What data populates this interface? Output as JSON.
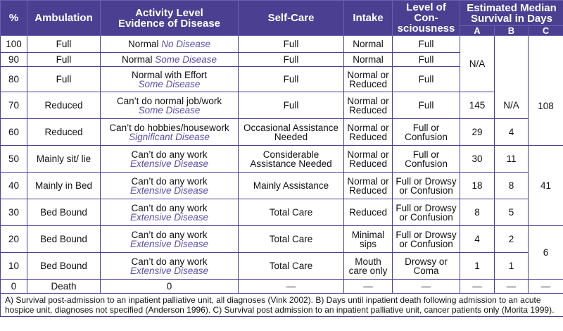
{
  "header": {
    "pct": "%",
    "ambulation": "Ambulation",
    "activity_line1": "Activity Level",
    "activity_line2": "Evidence of Disease",
    "selfcare": "Self-Care",
    "intake": "Intake",
    "consciousness_line1": "Level of Con-",
    "consciousness_line2": "sciousness",
    "estimate_line1": "Estimated Median",
    "estimate_line2": "Survival in Days",
    "col_a": "A",
    "col_b": "B",
    "col_c": "C"
  },
  "rows": [
    {
      "pct": "100",
      "amb": "Full",
      "act": "Normal",
      "dis": "No Disease",
      "care": "Full",
      "intake": "Normal",
      "loc": "Full"
    },
    {
      "pct": "90",
      "amb": "Full",
      "act": "Normal",
      "dis": "Some Disease",
      "care": "Full",
      "intake": "Normal",
      "loc": "Full"
    },
    {
      "pct": "80",
      "amb": "Full",
      "act": "Normal with Effort",
      "dis": "Some Disease",
      "care": "Full",
      "intake": "Normal or Reduced",
      "loc": "Full"
    },
    {
      "pct": "70",
      "amb": "Reduced",
      "act": "Can’t do normal job/work",
      "dis": "Some Disease",
      "care": "Full",
      "intake": "Normal or Reduced",
      "loc": "Full"
    },
    {
      "pct": "60",
      "amb": "Reduced",
      "act": "Can’t do hobbies/housework",
      "dis": "Significant Disease",
      "care": "Occasional Assistance Needed",
      "intake": "Normal or Reduced",
      "loc": "Full or Confusion"
    },
    {
      "pct": "50",
      "amb": "Mainly sit/ lie",
      "act": "Can’t do any work",
      "dis": "Extensive Disease",
      "care": "Considerable Assistance Needed",
      "intake": "Normal or Reduced",
      "loc": "Full or Confusion"
    },
    {
      "pct": "40",
      "amb": "Mainly in Bed",
      "act": "Can’t do any work",
      "dis": "Extensive Disease",
      "care": "Mainly Assistance",
      "intake": "Normal or Reduced",
      "loc": "Full or Drowsy or Confusion"
    },
    {
      "pct": "30",
      "amb": "Bed Bound",
      "act": "Can’t do any work",
      "dis": "Extensive Disease",
      "care": "Total Care",
      "intake": "Reduced",
      "loc": "Full or Drowsy or Confusion"
    },
    {
      "pct": "20",
      "amb": "Bed Bound",
      "act": "Can’t do any work",
      "dis": "Extensive Disease",
      "care": "Total Care",
      "intake": "Minimal sips",
      "loc": "Full or Drowsy or Confusion"
    },
    {
      "pct": "10",
      "amb": "Bed Bound",
      "act": "Can’t do any work",
      "dis": "Extensive Disease",
      "care": "Total Care",
      "intake": "Mouth care only",
      "loc": "Drowsy or Coma"
    },
    {
      "pct": "0",
      "amb": "Death",
      "act": "0",
      "dis": "",
      "care": "—",
      "intake": "—",
      "loc": "—"
    }
  ],
  "survival": {
    "a_na": "N/A",
    "a_70": "145",
    "a_60": "29",
    "a_50": "30",
    "a_40": "18",
    "a_30": "8",
    "a_20": "4",
    "a_10": "1",
    "a_0": "—",
    "b_na": "N/A",
    "b_60": "4",
    "b_50": "11",
    "b_40": "8",
    "b_30": "5",
    "b_20": "2",
    "b_10": "1",
    "b_0": "—",
    "c_108": "108",
    "c_41": "41",
    "c_6": "6",
    "c_0": "—"
  },
  "footnote": "A) Survival post-admission to an inpatient palliative unit, all diagnoses (Vink 2002). B) Days until inpatient death following admission to an acute hospice unit, diagnoses not specified (Anderson 1996). C) Survival post admission to an inpatient palliative unit, cancer patients only (Morita 1999).",
  "colors": {
    "header_bg": "#4a3f91",
    "accent_text": "#5a4fa8"
  }
}
